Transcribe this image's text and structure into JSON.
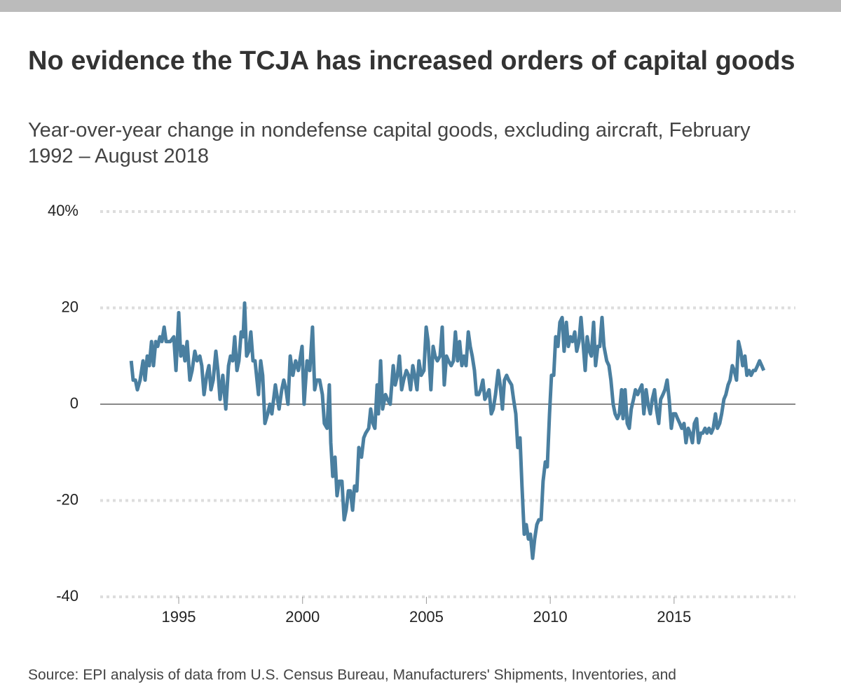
{
  "chart_data": {
    "type": "line",
    "title": "No evidence the TCJA has increased orders of capital goods",
    "subtitle": "Year-over-year change in nondefense capital goods, excluding aircraft, February 1992 – August 2018",
    "source": "Source: EPI analysis of data from U.S. Census Bureau, Manufacturers' Shipments, Inventories, and",
    "color": "#4a7fa0",
    "xlim": [
      1991.83,
      2019.9
    ],
    "xticks": [
      1995,
      2000,
      2005,
      2010,
      2015
    ],
    "ylim": [
      -40,
      40
    ],
    "yticks": [
      {
        "value": 40,
        "label": "40%"
      },
      20,
      0,
      -20,
      -40
    ],
    "grid": true,
    "x": [
      1993.08,
      1993.16,
      1993.25,
      1993.33,
      1993.44,
      1993.56,
      1993.64,
      1993.73,
      1993.81,
      1993.9,
      1993.98,
      1994.07,
      1994.15,
      1994.24,
      1994.32,
      1994.41,
      1994.49,
      1994.66,
      1994.8,
      1994.89,
      1995.0,
      1995.08,
      1995.17,
      1995.25,
      1995.34,
      1995.45,
      1995.54,
      1995.65,
      1995.74,
      1995.85,
      1995.93,
      1996.02,
      1996.13,
      1996.22,
      1996.3,
      1996.39,
      1996.5,
      1996.58,
      1996.67,
      1996.78,
      1996.9,
      1997.01,
      1997.09,
      1997.18,
      1997.26,
      1997.35,
      1997.43,
      1997.52,
      1997.6,
      1997.66,
      1997.74,
      1997.83,
      1997.91,
      1998.0,
      1998.08,
      1998.22,
      1998.31,
      1998.39,
      1998.48,
      1998.59,
      1998.68,
      1998.76,
      1998.9,
      1999.05,
      1999.16,
      1999.24,
      1999.33,
      1999.41,
      1999.5,
      1999.61,
      1999.72,
      1999.83,
      1999.98,
      2000.06,
      2000.18,
      2000.29,
      2000.4,
      2000.49,
      2000.57,
      2000.69,
      2000.8,
      2000.88,
      2000.99,
      2001.08,
      2001.14,
      2001.22,
      2001.31,
      2001.39,
      2001.48,
      2001.59,
      2001.68,
      2001.76,
      2001.85,
      2001.93,
      2002.02,
      2002.1,
      2002.19,
      2002.27,
      2002.38,
      2002.47,
      2002.55,
      2002.67,
      2002.75,
      2002.84,
      2002.92,
      2003.01,
      2003.06,
      2003.15,
      2003.23,
      2003.35,
      2003.43,
      2003.54,
      2003.66,
      2003.74,
      2003.83,
      2003.91,
      2004.0,
      2004.08,
      2004.19,
      2004.28,
      2004.36,
      2004.45,
      2004.53,
      2004.62,
      2004.7,
      2004.79,
      2004.9,
      2004.99,
      2005.07,
      2005.18,
      2005.27,
      2005.35,
      2005.44,
      2005.55,
      2005.64,
      2005.72,
      2005.81,
      2005.89,
      2006.0,
      2006.09,
      2006.17,
      2006.26,
      2006.34,
      2006.43,
      2006.51,
      2006.6,
      2006.69,
      2006.77,
      2006.85,
      2006.94,
      2007.02,
      2007.11,
      2007.19,
      2007.28,
      2007.36,
      2007.45,
      2007.53,
      2007.62,
      2007.7,
      2007.79,
      2007.9,
      2007.98,
      2008.07,
      2008.15,
      2008.24,
      2008.32,
      2008.44,
      2008.52,
      2008.61,
      2008.69,
      2008.78,
      2008.86,
      2008.95,
      2009.03,
      2009.12,
      2009.2,
      2009.29,
      2009.37,
      2009.46,
      2009.54,
      2009.63,
      2009.71,
      2009.8,
      2009.88,
      2009.97,
      2010.05,
      2010.14,
      2010.22,
      2010.31,
      2010.39,
      2010.48,
      2010.56,
      2010.65,
      2010.73,
      2010.82,
      2010.9,
      2010.99,
      2011.07,
      2011.16,
      2011.24,
      2011.32,
      2011.41,
      2011.49,
      2011.58,
      2011.66,
      2011.75,
      2011.83,
      2011.92,
      2012.0,
      2012.09,
      2012.17,
      2012.28,
      2012.37,
      2012.45,
      2012.54,
      2012.62,
      2012.71,
      2012.79,
      2012.88,
      2012.94,
      2013.02,
      2013.11,
      2013.19,
      2013.27,
      2013.36,
      2013.44,
      2013.53,
      2013.61,
      2013.7,
      2013.78,
      2013.87,
      2013.95,
      2014.04,
      2014.12,
      2014.21,
      2014.29,
      2014.38,
      2014.46,
      2014.55,
      2014.63,
      2014.72,
      2014.8,
      2014.89,
      2014.97,
      2015.06,
      2015.14,
      2015.23,
      2015.31,
      2015.4,
      2015.48,
      2015.57,
      2015.65,
      2015.74,
      2015.82,
      2015.91,
      2015.99,
      2016.08,
      2016.16,
      2016.25,
      2016.33,
      2016.41,
      2016.5,
      2016.58,
      2016.67,
      2016.75,
      2016.84,
      2016.92,
      2017.01,
      2017.09,
      2017.18,
      2017.26,
      2017.35,
      2017.43,
      2017.52,
      2017.6,
      2017.69,
      2017.77,
      2017.86,
      2017.94,
      2018.03,
      2018.11,
      2018.2,
      2018.28,
      2018.37,
      2018.45,
      2018.54,
      2018.62
    ],
    "values": [
      9,
      5,
      5,
      3,
      5,
      9,
      5,
      10,
      8,
      13,
      8,
      13,
      12,
      14,
      13,
      16,
      13,
      13,
      14,
      7,
      19,
      10,
      12,
      9,
      13,
      5,
      7,
      11,
      9,
      10,
      8,
      2,
      6,
      8,
      3,
      5,
      11,
      7,
      1,
      6,
      -1,
      8,
      10,
      9,
      14,
      7,
      9,
      15,
      14,
      21,
      10,
      11,
      15,
      9,
      9,
      2,
      9,
      6,
      -4,
      -2,
      0,
      -2,
      4,
      -1,
      3,
      5,
      3,
      0,
      10,
      6,
      9,
      7,
      12,
      0,
      9,
      7,
      16,
      3,
      5,
      5,
      2,
      -4,
      -5,
      4,
      -8,
      -15,
      -11,
      -19,
      -16,
      -16,
      -24,
      -22,
      -18,
      -18,
      -22,
      -17,
      -18,
      -9,
      -11,
      -7,
      -6,
      -5,
      -1,
      -4,
      -5,
      4,
      -2,
      9,
      -1,
      2,
      1,
      0,
      8,
      4,
      6,
      10,
      3,
      5,
      7,
      6,
      3,
      8,
      6,
      3,
      9,
      6,
      7,
      16,
      13,
      3,
      12,
      10,
      9,
      10,
      16,
      4,
      10,
      9,
      8,
      9,
      15,
      9,
      13,
      8,
      10,
      8,
      15,
      12,
      10,
      7,
      2,
      2,
      3,
      5,
      1,
      2,
      3,
      -2,
      -1,
      2,
      7,
      4,
      -1,
      5,
      6,
      5,
      4,
      1,
      -2,
      -9,
      -7,
      -17,
      -27,
      -25,
      -28,
      -27,
      -32,
      -28,
      -25,
      -24,
      -24,
      -16,
      -12,
      -13,
      -2,
      6,
      6,
      14,
      12,
      17,
      18,
      11,
      17,
      12,
      14,
      13,
      15,
      11,
      13,
      18,
      13,
      7,
      14,
      11,
      10,
      17,
      8,
      12,
      12,
      18,
      12,
      9,
      8,
      5,
      0,
      -2,
      -3,
      -2,
      3,
      -3,
      3,
      -4,
      -5,
      -1,
      1,
      3,
      2,
      3,
      4,
      -2,
      3,
      0,
      -2,
      1,
      3,
      -1,
      -4,
      1,
      2,
      3,
      5,
      1,
      -5,
      -2,
      -2,
      -3,
      -4,
      -5,
      -4,
      -8,
      -5,
      -6,
      -8,
      -4,
      -3,
      -8,
      -6,
      -6,
      -5,
      -6,
      -5,
      -6,
      -5,
      -2,
      -5,
      -4,
      -2,
      1,
      2,
      4,
      5,
      8,
      7,
      5,
      13,
      11,
      8,
      10,
      6,
      7,
      6,
      7,
      7,
      8,
      9,
      8,
      7
    ]
  }
}
